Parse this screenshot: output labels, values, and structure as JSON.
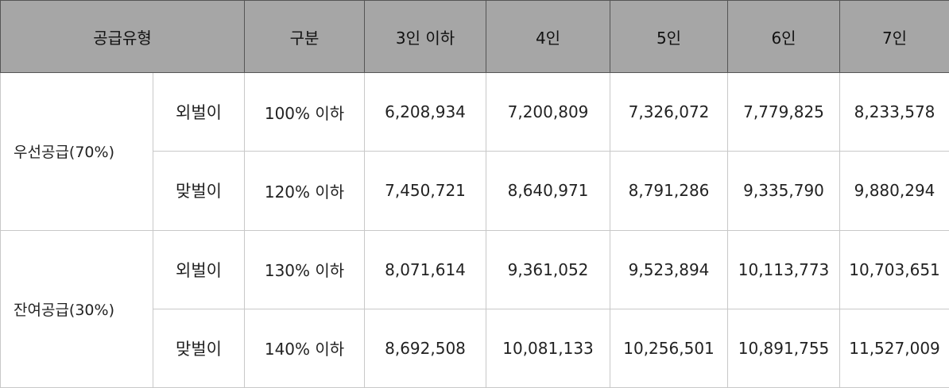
{
  "header": {
    "supply_type": "공급유형",
    "category": "구분",
    "household_sizes": [
      "3인 이하",
      "4인",
      "5인",
      "6인",
      "7인"
    ]
  },
  "groups": [
    {
      "name": "우선공급(70%)",
      "rows": [
        {
          "sub_type": "외벌이",
          "criterion": "100% 이하",
          "values": [
            "6,208,934",
            "7,200,809",
            "7,326,072",
            "7,779,825",
            "8,233,578"
          ]
        },
        {
          "sub_type": "맞벌이",
          "criterion": "120% 이하",
          "values": [
            "7,450,721",
            "8,640,971",
            "8,791,286",
            "9,335,790",
            "9,880,294"
          ]
        }
      ]
    },
    {
      "name": "잔여공급(30%)",
      "rows": [
        {
          "sub_type": "외벌이",
          "criterion": "130% 이하",
          "values": [
            "8,071,614",
            "9,361,052",
            "9,523,894",
            "10,113,773",
            "10,703,651"
          ]
        },
        {
          "sub_type": "맞벌이",
          "criterion": "140% 이하",
          "values": [
            "8,692,508",
            "10,081,133",
            "10,256,501",
            "10,891,755",
            "11,527,009"
          ]
        }
      ]
    }
  ]
}
